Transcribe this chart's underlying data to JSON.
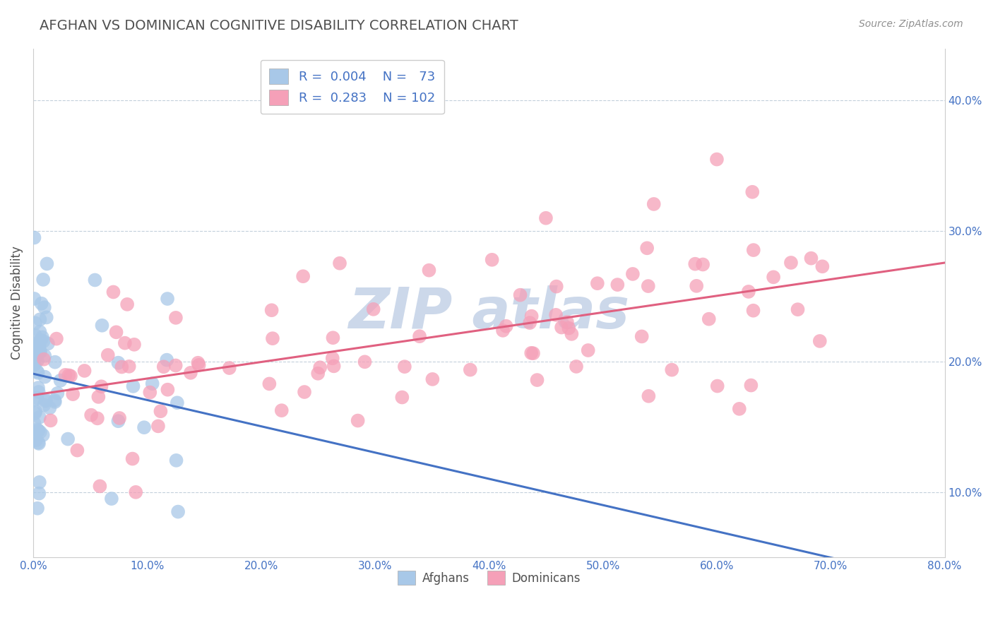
{
  "title": "AFGHAN VS DOMINICAN COGNITIVE DISABILITY CORRELATION CHART",
  "source": "Source: ZipAtlas.com",
  "ylabel": "Cognitive Disability",
  "xlim": [
    0.0,
    0.8
  ],
  "ylim": [
    0.05,
    0.44
  ],
  "afghan_R": 0.004,
  "afghan_N": 73,
  "dominican_R": 0.283,
  "dominican_N": 102,
  "afghan_color": "#a8c8e8",
  "dominican_color": "#f5a0b8",
  "afghan_line_color": "#4472c4",
  "dominican_line_color": "#e06080",
  "legend_text_color": "#4472c4",
  "title_color": "#505050",
  "source_color": "#909090",
  "watermark_color": "#ccd8ea",
  "background_color": "#ffffff",
  "grid_color": "#aabccc",
  "right_axis_color": "#4472c4",
  "yticks": [
    0.1,
    0.2,
    0.3,
    0.4
  ],
  "ytick_labels": [
    "10.0%",
    "20.0%",
    "30.0%",
    "40.0%"
  ],
  "xticks": [
    0.0,
    0.1,
    0.2,
    0.3,
    0.4,
    0.5,
    0.6,
    0.7,
    0.8
  ],
  "xtick_labels": [
    "0.0%",
    "10.0%",
    "20.0%",
    "30.0%",
    "40.0%",
    "50.0%",
    "60.0%",
    "70.0%",
    "80.0%"
  ],
  "legend_labels": [
    "Afghans",
    "Dominicans"
  ]
}
